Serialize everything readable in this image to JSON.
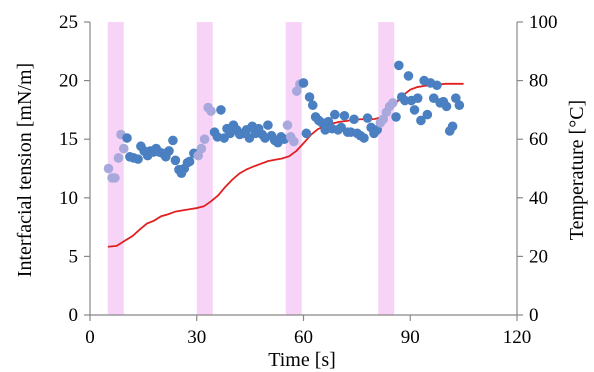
{
  "chart_data": {
    "type": "scatter",
    "title": "",
    "xlabel": "Time [s]",
    "ylabel_left": "Interfacial tension [mN/m]",
    "ylabel_right": "Temperature [°C]",
    "xlim": [
      0,
      120
    ],
    "ylim_left": [
      0,
      25
    ],
    "ylim_right": [
      0,
      100
    ],
    "xticks": [
      "0",
      "30",
      "60",
      "90",
      "120"
    ],
    "yticks_left": [
      "0",
      "5",
      "10",
      "15",
      "20",
      "25"
    ],
    "yticks_right": [
      "0",
      "20",
      "40",
      "60",
      "80",
      "100"
    ],
    "grid": false,
    "legend": "none",
    "highlight_bands": [
      [
        5,
        9.5
      ],
      [
        30,
        34.5
      ],
      [
        55,
        59.5
      ],
      [
        81,
        85.5
      ]
    ],
    "series": [
      {
        "axis": "left",
        "kind": "scatter",
        "color": "#4a7fc1",
        "points": [
          [
            5.2,
            12.5
          ],
          [
            6.2,
            11.7
          ],
          [
            7.0,
            11.7
          ],
          [
            8.0,
            13.4
          ],
          [
            8.7,
            15.4
          ],
          [
            9.5,
            14.2
          ],
          [
            10.4,
            15.1
          ],
          [
            11.2,
            13.5
          ],
          [
            12.3,
            13.4
          ],
          [
            13.5,
            13.3
          ],
          [
            14.3,
            14.4
          ],
          [
            15.2,
            14.0
          ],
          [
            16.2,
            13.6
          ],
          [
            17.0,
            14.0
          ],
          [
            17.8,
            13.9
          ],
          [
            18.6,
            14.2
          ],
          [
            19.5,
            13.9
          ],
          [
            20.4,
            13.8
          ],
          [
            21.3,
            13.5
          ],
          [
            22.2,
            14.0
          ],
          [
            23.3,
            14.9
          ],
          [
            24.0,
            13.2
          ],
          [
            25.0,
            12.4
          ],
          [
            25.7,
            12.1
          ],
          [
            26.5,
            12.5
          ],
          [
            27.4,
            13.0
          ],
          [
            28.0,
            13.1
          ],
          [
            29.2,
            13.8
          ],
          [
            30.4,
            13.6
          ],
          [
            31.3,
            14.2
          ],
          [
            32.2,
            15.0
          ],
          [
            33.2,
            17.7
          ],
          [
            34.0,
            17.4
          ],
          [
            35.0,
            15.6
          ],
          [
            35.8,
            15.2
          ],
          [
            36.8,
            17.5
          ],
          [
            37.7,
            15.1
          ],
          [
            38.5,
            15.9
          ],
          [
            39.4,
            15.5
          ],
          [
            40.3,
            16.2
          ],
          [
            41.2,
            15.8
          ],
          [
            42.1,
            15.4
          ],
          [
            43.0,
            15.5
          ],
          [
            44.0,
            15.8
          ],
          [
            44.8,
            15.1
          ],
          [
            45.6,
            16.1
          ],
          [
            46.5,
            15.5
          ],
          [
            47.4,
            15.9
          ],
          [
            48.4,
            15.4
          ],
          [
            49.2,
            15.1
          ],
          [
            50.0,
            16.2
          ],
          [
            51.0,
            15.3
          ],
          [
            51.9,
            14.9
          ],
          [
            52.8,
            14.7
          ],
          [
            53.7,
            15.2
          ],
          [
            54.6,
            15.0
          ],
          [
            55.5,
            16.2
          ],
          [
            56.4,
            15.2
          ],
          [
            57.3,
            14.8
          ],
          [
            58.1,
            19.1
          ],
          [
            59.0,
            19.7
          ],
          [
            60.0,
            19.8
          ],
          [
            60.8,
            15.5
          ],
          [
            61.7,
            18.6
          ],
          [
            62.6,
            17.9
          ],
          [
            63.4,
            16.9
          ],
          [
            64.3,
            16.6
          ],
          [
            65.2,
            16.4
          ],
          [
            66.1,
            15.8
          ],
          [
            67.0,
            16.5
          ],
          [
            68.0,
            15.9
          ],
          [
            68.8,
            17.1
          ],
          [
            69.7,
            15.8
          ],
          [
            70.6,
            16.0
          ],
          [
            71.5,
            17.0
          ],
          [
            72.4,
            15.6
          ],
          [
            73.3,
            15.6
          ],
          [
            74.2,
            16.7
          ],
          [
            75.1,
            15.5
          ],
          [
            76.0,
            15.3
          ],
          [
            77.0,
            15.1
          ],
          [
            78.0,
            16.8
          ],
          [
            79.0,
            16.0
          ],
          [
            79.8,
            15.5
          ],
          [
            80.7,
            15.8
          ],
          [
            81.6,
            16.4
          ],
          [
            82.4,
            16.7
          ],
          [
            83.3,
            17.3
          ],
          [
            84.2,
            17.8
          ],
          [
            85.1,
            18.1
          ],
          [
            86.0,
            16.9
          ],
          [
            86.8,
            21.3
          ],
          [
            87.6,
            18.6
          ],
          [
            88.5,
            18.3
          ],
          [
            89.5,
            20.4
          ],
          [
            90.3,
            18.3
          ],
          [
            91.2,
            17.5
          ],
          [
            92.1,
            18.5
          ],
          [
            93.0,
            16.6
          ],
          [
            93.9,
            20.0
          ],
          [
            94.8,
            17.1
          ],
          [
            95.7,
            19.8
          ],
          [
            96.6,
            18.5
          ],
          [
            97.5,
            19.6
          ],
          [
            98.4,
            18.1
          ],
          [
            99.3,
            18.2
          ],
          [
            100.2,
            17.8
          ],
          [
            101.1,
            15.7
          ],
          [
            101.9,
            16.1
          ],
          [
            102.8,
            18.5
          ],
          [
            103.8,
            17.9
          ]
        ]
      },
      {
        "axis": "right",
        "kind": "line",
        "color": "#e02020",
        "points": [
          [
            5,
            23.3
          ],
          [
            7.5,
            23.6
          ],
          [
            10,
            25.5
          ],
          [
            12,
            27.0
          ],
          [
            14,
            29.2
          ],
          [
            16,
            31.2
          ],
          [
            18,
            32.2
          ],
          [
            20,
            33.7
          ],
          [
            22,
            34.4
          ],
          [
            24,
            35.3
          ],
          [
            26,
            35.7
          ],
          [
            28,
            36.1
          ],
          [
            30,
            36.5
          ],
          [
            32,
            37.1
          ],
          [
            34,
            38.8
          ],
          [
            36,
            40.8
          ],
          [
            38,
            43.7
          ],
          [
            40,
            46.2
          ],
          [
            42,
            48.3
          ],
          [
            44,
            49.7
          ],
          [
            46,
            50.7
          ],
          [
            48,
            51.6
          ],
          [
            50,
            52.5
          ],
          [
            52,
            53.0
          ],
          [
            54,
            53.4
          ],
          [
            56,
            54.2
          ],
          [
            58,
            56.0
          ],
          [
            60,
            58.6
          ],
          [
            62,
            61.4
          ],
          [
            64,
            63.4
          ],
          [
            66,
            64.5
          ],
          [
            68,
            65.3
          ],
          [
            70,
            65.9
          ],
          [
            72,
            66.2
          ],
          [
            74,
            66.6
          ],
          [
            76,
            66.8
          ],
          [
            78,
            66.8
          ],
          [
            80,
            66.9
          ],
          [
            82,
            67.5
          ],
          [
            84,
            69.2
          ],
          [
            86,
            72.4
          ],
          [
            88,
            75.0
          ],
          [
            90,
            76.9
          ],
          [
            92,
            77.8
          ],
          [
            94,
            78.2
          ],
          [
            96,
            78.5
          ],
          [
            98,
            78.7
          ],
          [
            100,
            78.9
          ],
          [
            102,
            78.9
          ],
          [
            105,
            78.9
          ]
        ]
      }
    ],
    "colors": {
      "band": "#f7d4f7",
      "axis": "#888888",
      "scatter_inside_band": "#a8a8dc"
    }
  }
}
